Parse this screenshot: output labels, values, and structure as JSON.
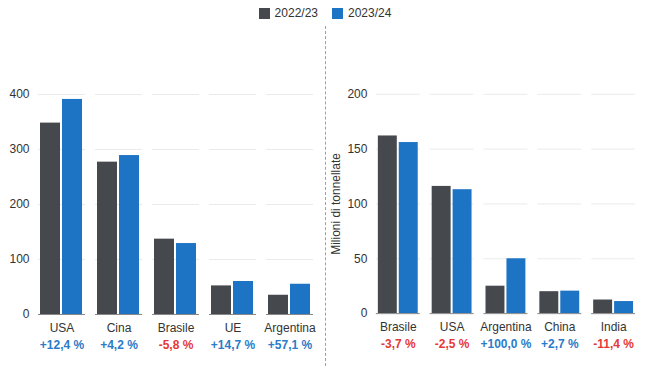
{
  "chart_data": [
    {
      "type": "bar",
      "categories": [
        "USA",
        "Cina",
        "Brasile",
        "UE",
        "Argentina"
      ],
      "series": [
        {
          "name": "2022/23",
          "color": "#45484d",
          "values": [
            348,
            277,
            137,
            52,
            35
          ]
        },
        {
          "name": "2023/24",
          "color": "#1e74c4",
          "values": [
            391,
            289,
            129,
            60,
            55
          ]
        }
      ],
      "annotations": [
        "+12,4 %",
        "+4,2 %",
        "-5,8 %",
        "+14,7 %",
        "+57,1 %"
      ],
      "ylim": [
        0,
        400
      ],
      "yticks": [
        0,
        100,
        200,
        300,
        400
      ],
      "grid": true,
      "legend": "top"
    },
    {
      "type": "bar",
      "y_label": "Milioni di tonnellate",
      "categories": [
        "Brasile",
        "USA",
        "Argentina",
        "China",
        "India"
      ],
      "series": [
        {
          "name": "2022/23",
          "color": "#45484d",
          "values": [
            162,
            116,
            25,
            20,
            12.4
          ]
        },
        {
          "name": "2023/24",
          "color": "#1e74c4",
          "values": [
            156,
            113,
            50,
            20.5,
            11
          ]
        }
      ],
      "annotations": [
        "-3,7 %",
        "-2,5 %",
        "+100,0 %",
        "+2,7 %",
        "-11,4 %"
      ],
      "ylim": [
        0,
        200
      ],
      "yticks": [
        0,
        50,
        100,
        150,
        200
      ],
      "grid": true
    }
  ]
}
